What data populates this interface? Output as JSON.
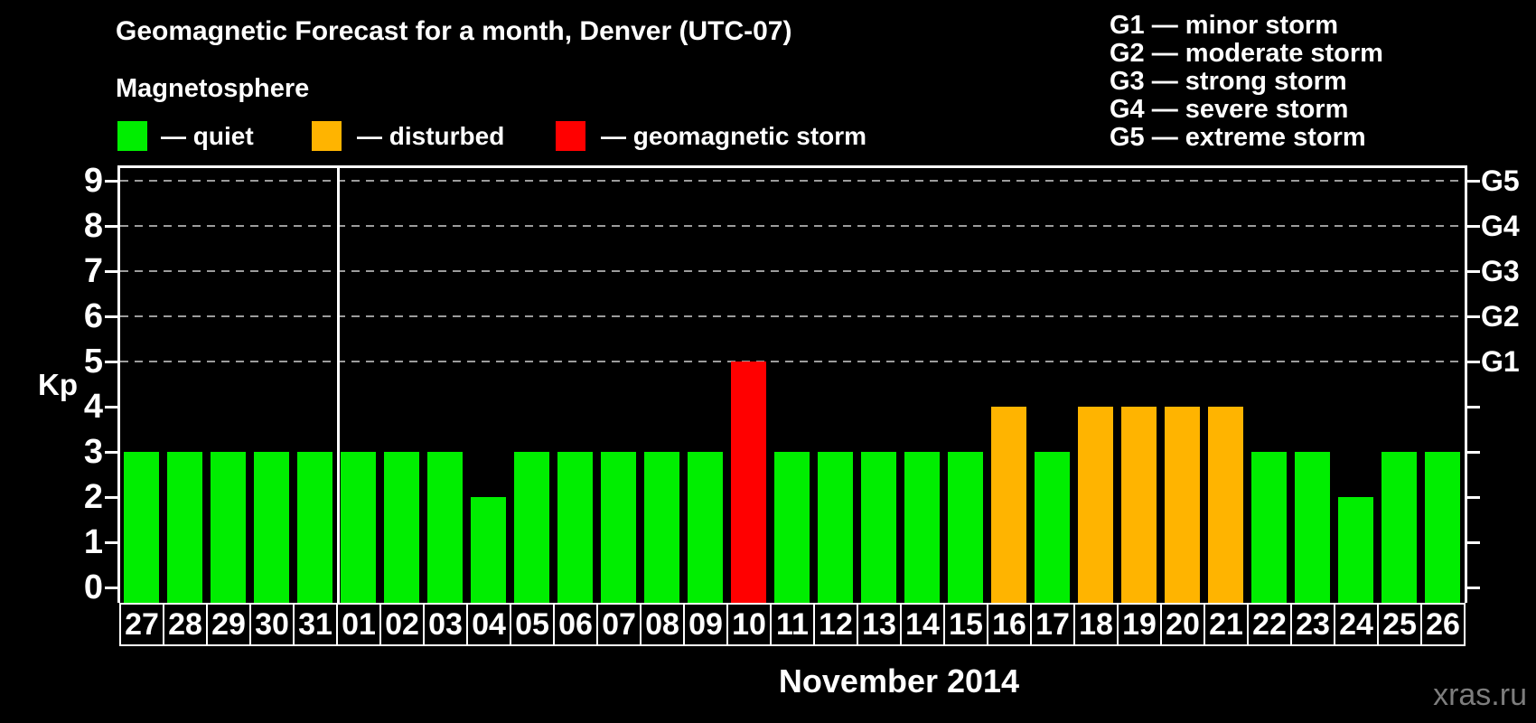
{
  "header": {
    "title": "Geomagnetic Forecast for a month, Denver (UTC-07)",
    "subtitle": "Magnetosphere"
  },
  "legend": {
    "items": [
      {
        "key": "quiet",
        "label": "— quiet"
      },
      {
        "key": "disturbed",
        "label": "— disturbed"
      },
      {
        "key": "storm",
        "label": "— geomagnetic storm"
      }
    ]
  },
  "g_scale_legend": {
    "lines": [
      "G1 — minor storm",
      "G2 — moderate storm",
      "G3 — strong storm",
      "G4 — severe storm",
      "G5 — extreme storm"
    ]
  },
  "colors": {
    "quiet": "#00ee00",
    "disturbed": "#ffb400",
    "storm": "#ff0000",
    "grid": "#9c9c9c",
    "axis": "#ffffff",
    "background": "#000000",
    "watermark": "#7d7d7d"
  },
  "footer": {
    "watermark": "xras.ru"
  },
  "chart_data": {
    "type": "bar",
    "title": "Geomagnetic Forecast for a month, Denver (UTC-07)",
    "xlabel": "November 2014",
    "ylabel": "Kp",
    "ylim": [
      0,
      9.3
    ],
    "grid": "dashed horizontal lines at Kp 5,6,7,8,9 only",
    "legend_position": "top",
    "y_ticks_left": [
      0,
      1,
      2,
      3,
      4,
      5,
      6,
      7,
      8,
      9
    ],
    "y_ticks_right": {
      "5": "G1",
      "6": "G2",
      "7": "G3",
      "8": "G4",
      "9": "G5"
    },
    "month_boundary_after_index": 4,
    "categories": [
      "27",
      "28",
      "29",
      "30",
      "31",
      "01",
      "02",
      "03",
      "04",
      "05",
      "06",
      "07",
      "08",
      "09",
      "10",
      "11",
      "12",
      "13",
      "14",
      "15",
      "16",
      "17",
      "18",
      "19",
      "20",
      "21",
      "22",
      "23",
      "24",
      "25",
      "26"
    ],
    "values": [
      3,
      3,
      3,
      3,
      3,
      3,
      3,
      3,
      2,
      3,
      3,
      3,
      3,
      3,
      5,
      3,
      3,
      3,
      3,
      3,
      4,
      3,
      4,
      4,
      4,
      4,
      3,
      3,
      2,
      3,
      3
    ],
    "statuses": [
      "quiet",
      "quiet",
      "quiet",
      "quiet",
      "quiet",
      "quiet",
      "quiet",
      "quiet",
      "quiet",
      "quiet",
      "quiet",
      "quiet",
      "quiet",
      "quiet",
      "storm",
      "quiet",
      "quiet",
      "quiet",
      "quiet",
      "quiet",
      "disturbed",
      "quiet",
      "disturbed",
      "disturbed",
      "disturbed",
      "disturbed",
      "quiet",
      "quiet",
      "quiet",
      "quiet",
      "quiet"
    ]
  }
}
